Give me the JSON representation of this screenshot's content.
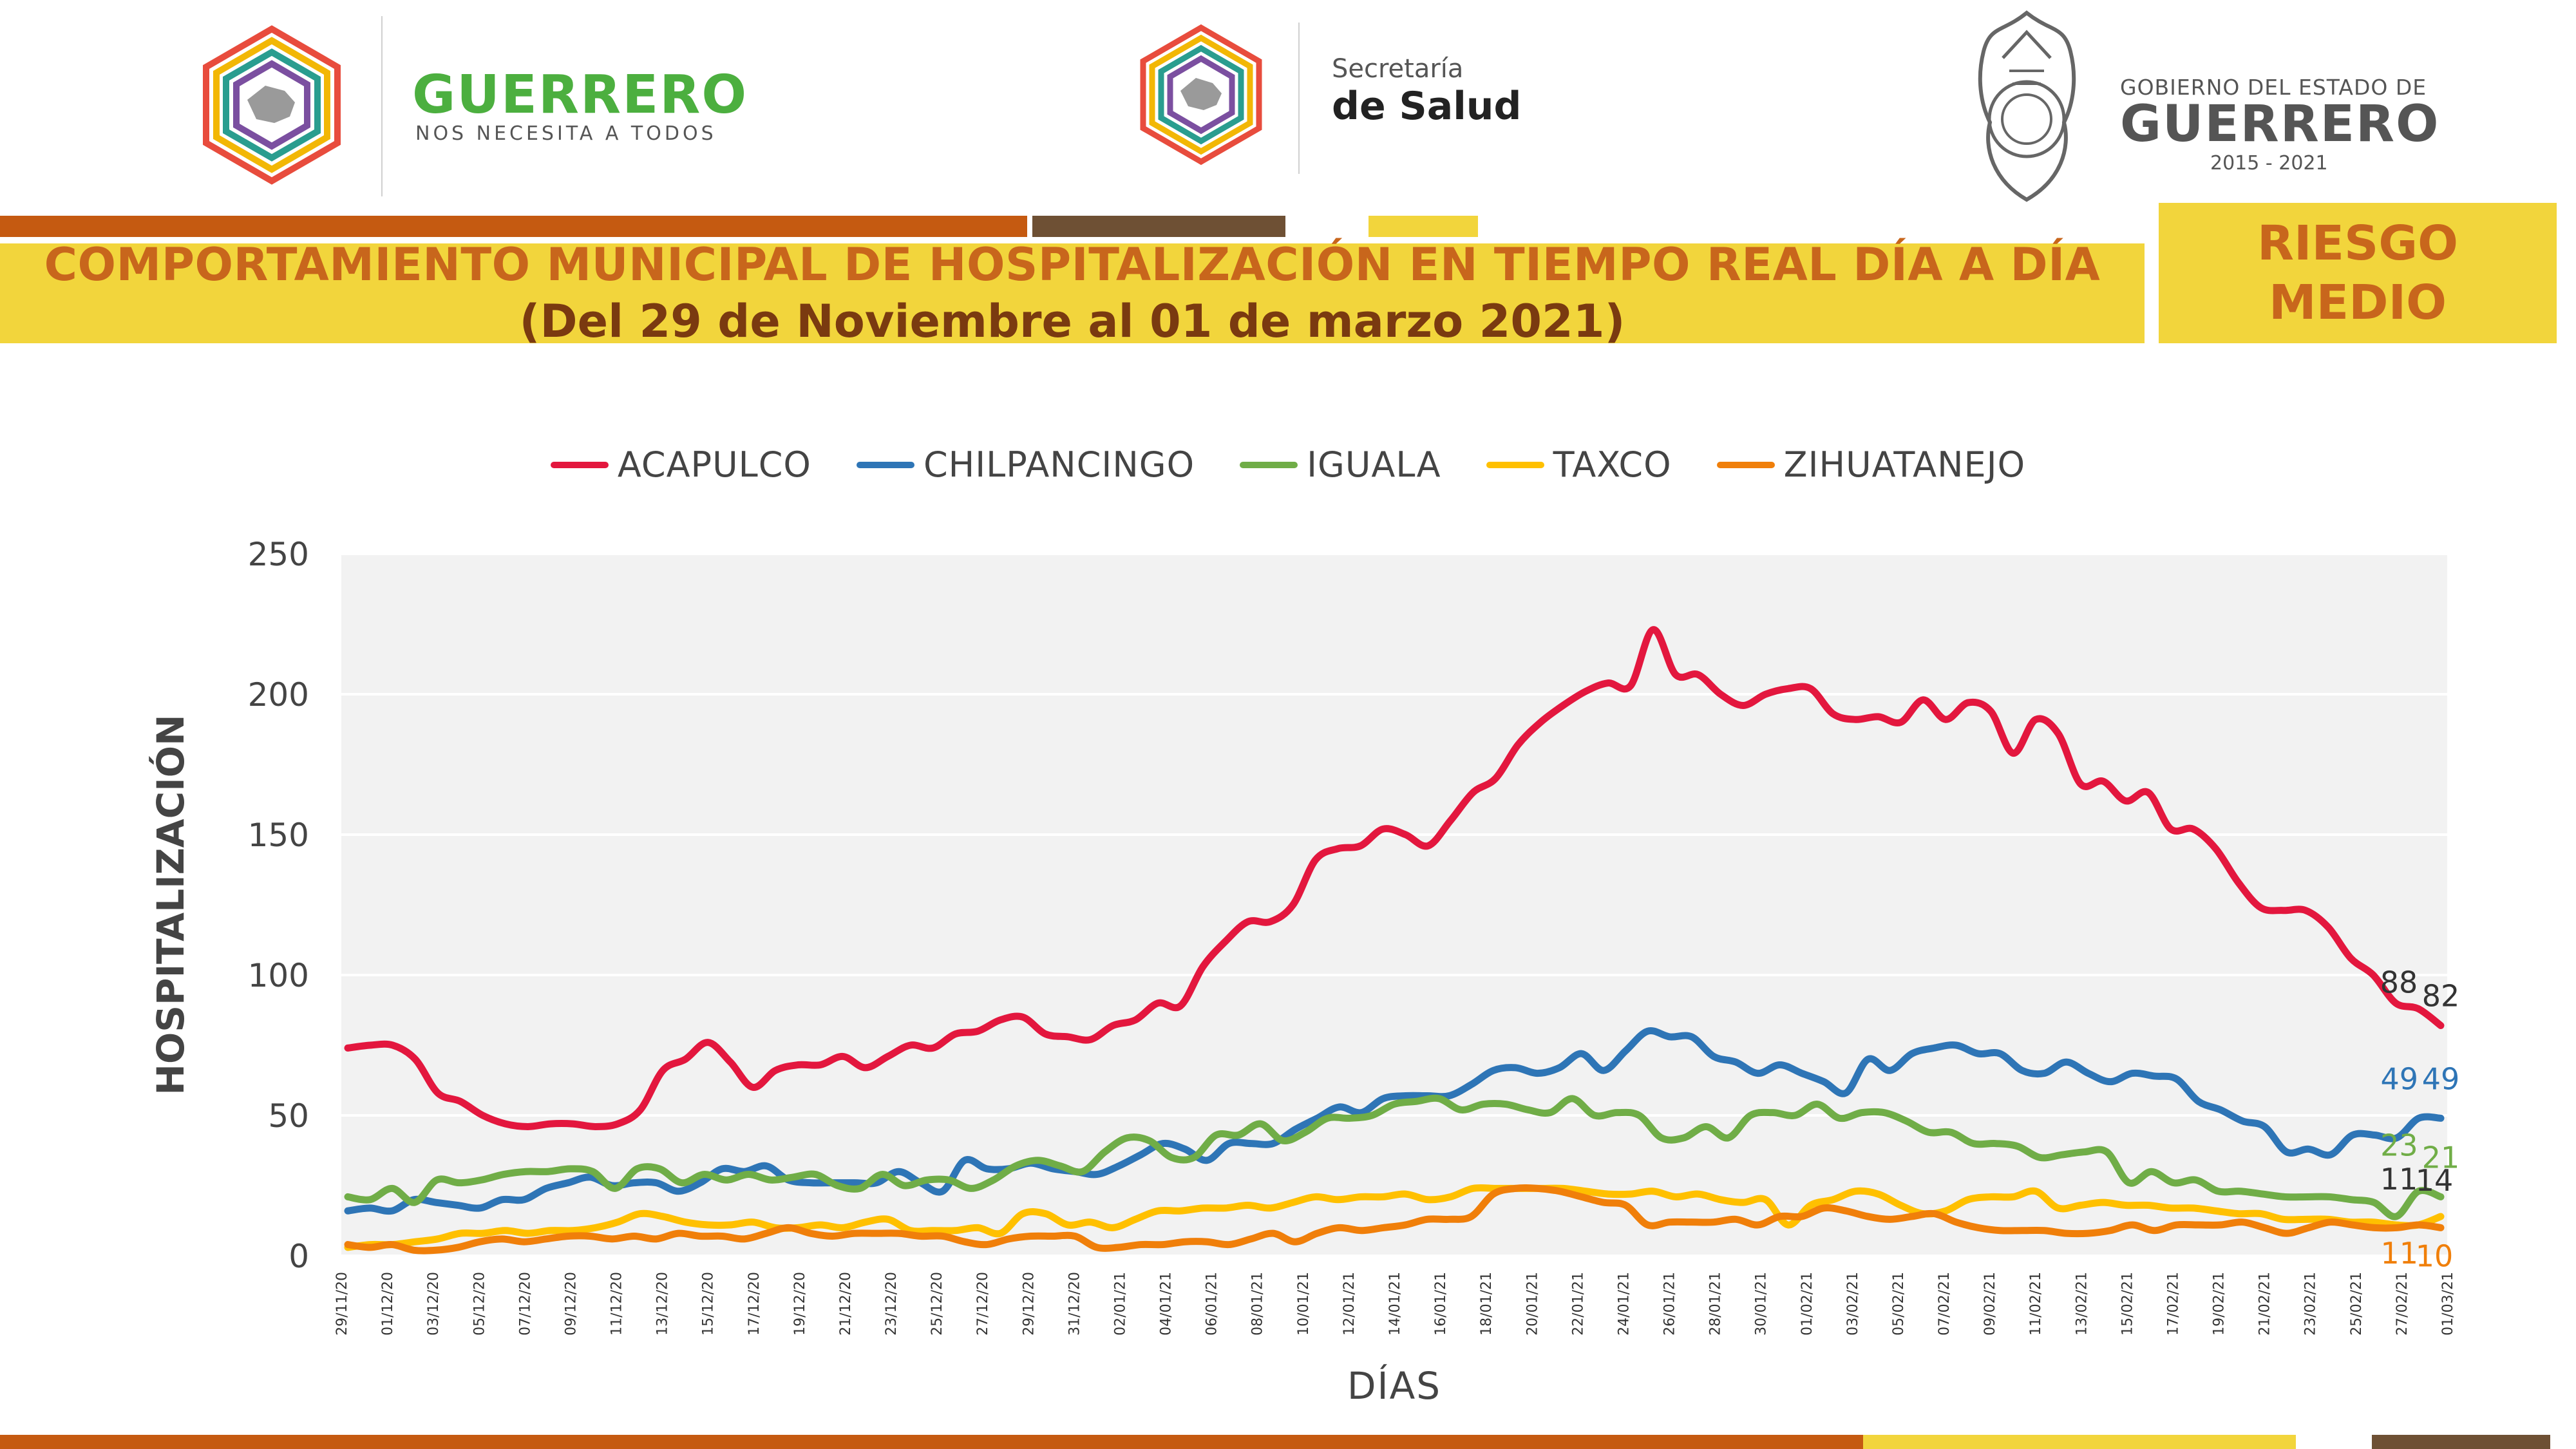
{
  "header": {
    "logo1_title": "GUERRERO",
    "logo1_sub": "NOS NECESITA A TODOS",
    "logo2_line1": "Secretaría",
    "logo2_line2": "de Salud",
    "logo3_line1": "GOBIERNO DEL ESTADO DE",
    "logo3_line2": "GUERRERO",
    "logo3_line3": "2015 - 2021"
  },
  "title": {
    "line1": "COMPORTAMIENTO MUNICIPAL DE HOSPITALIZACIÓN EN TIEMPO REAL DÍA A DÍA",
    "line2": "(Del 29 de Noviembre al 01 de marzo 2021)"
  },
  "risk": {
    "line1": "RIESGO",
    "line2": "MEDIO"
  },
  "colors": {
    "orange_bar": "#c55a11",
    "brown_bar": "#6e5034",
    "yellow": "#f2d53c",
    "title_orange": "#c8661c"
  },
  "chart_data": {
    "type": "line",
    "xlabel": "DÍAS",
    "ylabel": "HOSPITALIZACIÓN",
    "ylim": [
      0,
      250
    ],
    "yticks": [
      0,
      50,
      100,
      150,
      200,
      250
    ],
    "legend_position": "top-center",
    "x_tick_labels": [
      "29/11/20",
      "01/12/20",
      "03/12/20",
      "05/12/20",
      "07/12/20",
      "09/12/20",
      "11/12/20",
      "13/12/20",
      "15/12/20",
      "17/12/20",
      "19/12/20",
      "21/12/20",
      "23/12/20",
      "25/12/20",
      "27/12/20",
      "29/12/20",
      "31/12/20",
      "02/01/21",
      "04/01/21",
      "06/01/21",
      "08/01/21",
      "10/01/21",
      "12/01/21",
      "14/01/21",
      "16/01/21",
      "18/01/21",
      "20/01/21",
      "22/01/21",
      "24/01/21",
      "26/01/21",
      "28/01/21",
      "30/01/21",
      "01/02/21",
      "03/02/21",
      "05/02/21",
      "07/02/21",
      "09/02/21",
      "11/02/21",
      "13/02/21",
      "15/02/21",
      "17/02/21",
      "19/02/21",
      "21/02/21",
      "23/02/21",
      "25/02/21",
      "27/02/21",
      "01/03/21"
    ],
    "series": [
      {
        "name": "ACAPULCO",
        "color": "#e3173e",
        "values": [
          74,
          75,
          75,
          70,
          58,
          55,
          50,
          47,
          46,
          47,
          47,
          46,
          47,
          52,
          66,
          70,
          76,
          69,
          60,
          66,
          68,
          68,
          71,
          67,
          71,
          75,
          74,
          79,
          80,
          84,
          85,
          79,
          78,
          77,
          82,
          84,
          90,
          89,
          103,
          112,
          119,
          119,
          125,
          141,
          145,
          146,
          152,
          150,
          146,
          155,
          165,
          170,
          182,
          190,
          196,
          201,
          204,
          203,
          223,
          207,
          207,
          200,
          196,
          200,
          202,
          202,
          193,
          191,
          192,
          190,
          198,
          191,
          197,
          194,
          179,
          191,
          186,
          168,
          169,
          162,
          165,
          152,
          152,
          145,
          133,
          124,
          123,
          123,
          117,
          106,
          100,
          90,
          88,
          82
        ],
        "end_labels": [
          {
            "text": "88",
            "color": "#333333"
          },
          {
            "text": "82",
            "color": "#333333"
          }
        ]
      },
      {
        "name": "CHILPANCINGO",
        "color": "#2e75b6",
        "values": [
          16,
          17,
          16,
          20,
          19,
          18,
          17,
          20,
          20,
          24,
          26,
          28,
          25,
          26,
          26,
          23,
          26,
          31,
          30,
          32,
          27,
          26,
          26,
          26,
          26,
          30,
          26,
          23,
          34,
          31,
          31,
          33,
          31,
          30,
          29,
          32,
          36,
          40,
          38,
          34,
          40,
          40,
          40,
          45,
          49,
          53,
          51,
          56,
          57,
          57,
          57,
          61,
          66,
          67,
          65,
          67,
          72,
          66,
          73,
          80,
          78,
          78,
          71,
          69,
          65,
          68,
          65,
          62,
          58,
          70,
          66,
          72,
          74,
          75,
          72,
          72,
          66,
          65,
          69,
          65,
          62,
          65,
          64,
          63,
          55,
          52,
          48,
          46,
          37,
          38,
          36,
          43,
          43,
          42,
          49,
          49
        ],
        "end_labels": [
          {
            "text": "49",
            "color": "#2e75b6"
          },
          {
            "text": "49",
            "color": "#2e75b6"
          }
        ]
      },
      {
        "name": "IGUALA",
        "color": "#70ad47",
        "values": [
          21,
          20,
          24,
          19,
          27,
          26,
          27,
          29,
          30,
          30,
          31,
          30,
          24,
          31,
          31,
          26,
          29,
          27,
          29,
          27,
          28,
          29,
          25,
          24,
          29,
          25,
          27,
          27,
          24,
          27,
          32,
          34,
          32,
          30,
          37,
          42,
          41,
          35,
          35,
          43,
          43,
          47,
          41,
          44,
          49,
          49,
          50,
          54,
          55,
          56,
          52,
          54,
          54,
          52,
          51,
          56,
          50,
          51,
          50,
          42,
          42,
          46,
          42,
          50,
          51,
          50,
          54,
          49,
          51,
          51,
          48,
          44,
          44,
          40,
          40,
          39,
          35,
          36,
          37,
          37,
          26,
          30,
          26,
          27,
          23,
          23,
          22,
          21,
          21,
          21,
          20,
          19,
          14,
          23,
          21
        ],
        "end_labels": [
          {
            "text": "23",
            "color": "#70ad47"
          },
          {
            "text": "21",
            "color": "#70ad47"
          }
        ]
      },
      {
        "name": "TAXCO",
        "color": "#ffc000",
        "values": [
          3,
          4,
          4,
          5,
          6,
          8,
          8,
          9,
          8,
          9,
          9,
          10,
          12,
          15,
          14,
          12,
          11,
          11,
          12,
          10,
          10,
          11,
          10,
          12,
          13,
          9,
          9,
          9,
          10,
          8,
          15,
          15,
          11,
          12,
          10,
          13,
          16,
          16,
          17,
          17,
          18,
          17,
          19,
          21,
          20,
          21,
          21,
          22,
          20,
          21,
          24,
          24,
          24,
          24,
          24,
          23,
          22,
          22,
          23,
          21,
          22,
          20,
          19,
          20,
          11,
          18,
          20,
          23,
          22,
          18,
          15,
          16,
          20,
          21,
          21,
          23,
          17,
          18,
          19,
          18,
          18,
          17,
          17,
          16,
          15,
          15,
          13,
          13,
          13,
          12,
          12,
          11,
          11,
          14
        ],
        "end_labels": [
          {
            "text": "11",
            "color": "#333333"
          },
          {
            "text": "14",
            "color": "#333333"
          }
        ]
      },
      {
        "name": "ZIHUATANEJO",
        "color": "#f07f0a",
        "values": [
          4,
          3,
          4,
          2,
          2,
          3,
          5,
          6,
          5,
          6,
          7,
          7,
          6,
          7,
          6,
          8,
          7,
          7,
          6,
          8,
          10,
          8,
          7,
          8,
          8,
          8,
          7,
          7,
          5,
          4,
          6,
          7,
          7,
          7,
          3,
          3,
          4,
          4,
          5,
          5,
          4,
          6,
          8,
          5,
          8,
          10,
          9,
          10,
          11,
          13,
          13,
          14,
          22,
          24,
          24,
          23,
          21,
          19,
          18,
          11,
          12,
          12,
          12,
          13,
          11,
          14,
          14,
          17,
          16,
          14,
          13,
          14,
          15,
          12,
          10,
          9,
          9,
          9,
          8,
          8,
          9,
          11,
          9,
          11,
          11,
          11,
          12,
          10,
          8,
          10,
          12,
          11,
          10,
          10,
          11,
          10
        ],
        "end_labels": [
          {
            "text": "11",
            "color": "#f07f0a"
          },
          {
            "text": "10",
            "color": "#f07f0a"
          }
        ]
      }
    ]
  }
}
